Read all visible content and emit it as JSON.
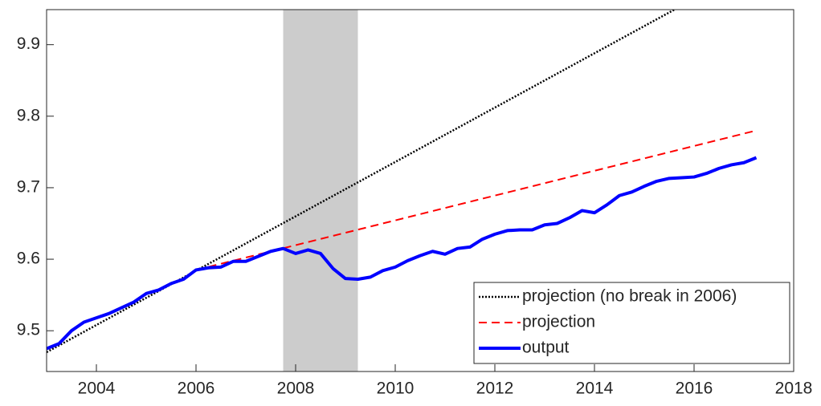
{
  "chart_data": {
    "type": "line",
    "xlim": [
      2003,
      2018
    ],
    "xticks": [
      2004,
      2006,
      2008,
      2010,
      2012,
      2014,
      2016,
      2018
    ],
    "ylim": [
      9.443,
      9.949
    ],
    "yticks": [
      9.5,
      9.6,
      9.7,
      9.8,
      9.9
    ],
    "shaded_x": [
      2007.75,
      2009.25
    ],
    "shade_color": "#cccccc",
    "legend": "lower right",
    "grid": false,
    "series": [
      {
        "name": "projection (no break in 2006)",
        "color": "#000000",
        "style": "dotted",
        "x": [
          2003,
          2017.25
        ],
        "values": [
          9.47,
          10.0115
        ]
      },
      {
        "name": "projection",
        "color": "#ff0000",
        "style": "dashed",
        "x": [
          2006,
          2017.25
        ],
        "values": [
          9.585,
          9.78
        ]
      },
      {
        "name": "output",
        "color": "#0000ff",
        "style": "solid",
        "x": [
          2003,
          2003.25,
          2003.5,
          2003.75,
          2004,
          2004.25,
          2004.5,
          2004.75,
          2005,
          2005.25,
          2005.5,
          2005.75,
          2006,
          2006.25,
          2006.5,
          2006.75,
          2007,
          2007.25,
          2007.5,
          2007.75,
          2008,
          2008.25,
          2008.5,
          2008.75,
          2009,
          2009.25,
          2009.5,
          2009.75,
          2010,
          2010.25,
          2010.5,
          2010.75,
          2011,
          2011.25,
          2011.5,
          2011.75,
          2012,
          2012.25,
          2012.5,
          2012.75,
          2013,
          2013.25,
          2013.5,
          2013.75,
          2014,
          2014.25,
          2014.5,
          2014.75,
          2015,
          2015.25,
          2015.5,
          2015.75,
          2016,
          2016.25,
          2016.5,
          2016.75,
          2017,
          2017.25
        ],
        "values": [
          9.475,
          9.482,
          9.5,
          9.512,
          9.518,
          9.524,
          9.532,
          9.54,
          9.552,
          9.557,
          9.566,
          9.572,
          9.585,
          9.588,
          9.589,
          9.597,
          9.597,
          9.604,
          9.611,
          9.615,
          9.608,
          9.613,
          9.608,
          9.587,
          9.573,
          9.572,
          9.575,
          9.584,
          9.589,
          9.598,
          9.605,
          9.611,
          9.607,
          9.615,
          9.617,
          9.628,
          9.635,
          9.64,
          9.641,
          9.641,
          9.648,
          9.65,
          9.658,
          9.668,
          9.665,
          9.676,
          9.689,
          9.694,
          9.702,
          9.709,
          9.713,
          9.714,
          9.715,
          9.72,
          9.727,
          9.732,
          9.735,
          9.742
        ]
      }
    ]
  }
}
